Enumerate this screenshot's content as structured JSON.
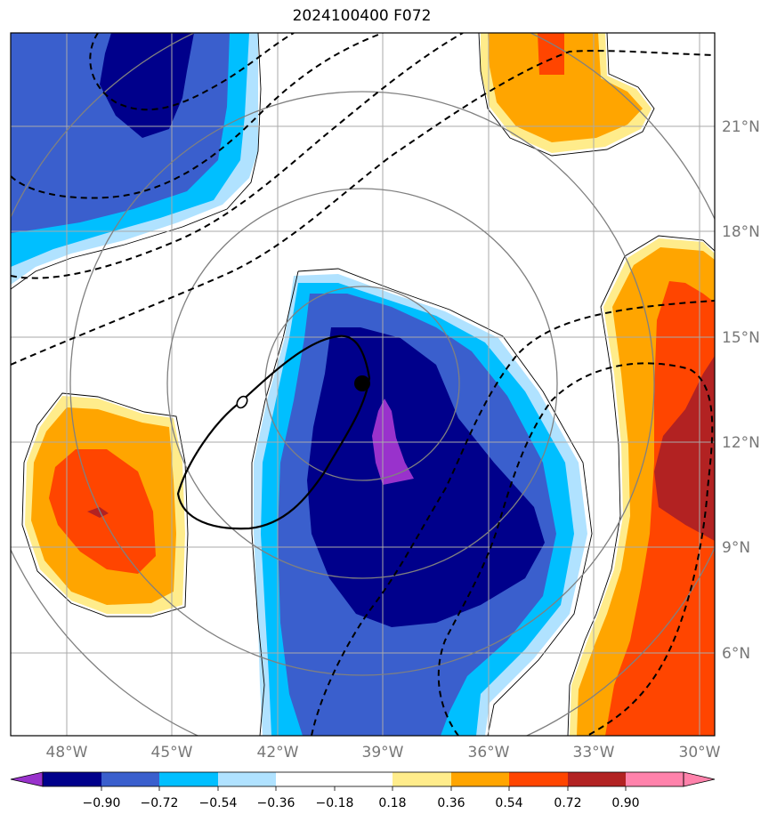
{
  "title": "2024100400 F072",
  "lon_labels": [
    "48°W",
    "45°W",
    "42°W",
    "39°W",
    "36°W",
    "33°W",
    "30°W"
  ],
  "lat_labels": [
    "21°N",
    "18°N",
    "15°N",
    "12°N",
    "9°N",
    "6°N"
  ],
  "colorbar": {
    "ticks": [
      "−0.90",
      "−0.72",
      "−0.54",
      "−0.36",
      "−0.18",
      "0.18",
      "0.36",
      "0.54",
      "0.72",
      "0.90"
    ],
    "colors": [
      "#9932CC",
      "#00008B",
      "#3A5FCD",
      "#00BFFF",
      "#B0E2FF",
      "#FFFFFF",
      "#FFEC8B",
      "#FFA500",
      "#FF4500",
      "#B22222",
      "#FF82AB"
    ]
  },
  "map": {
    "lon_range": [
      -49.6,
      -29.6
    ],
    "lat_range": [
      3.5,
      23.5
    ],
    "storm_center": {
      "lon": -39.6,
      "lat": 13.6
    },
    "range_rings": 4
  }
}
